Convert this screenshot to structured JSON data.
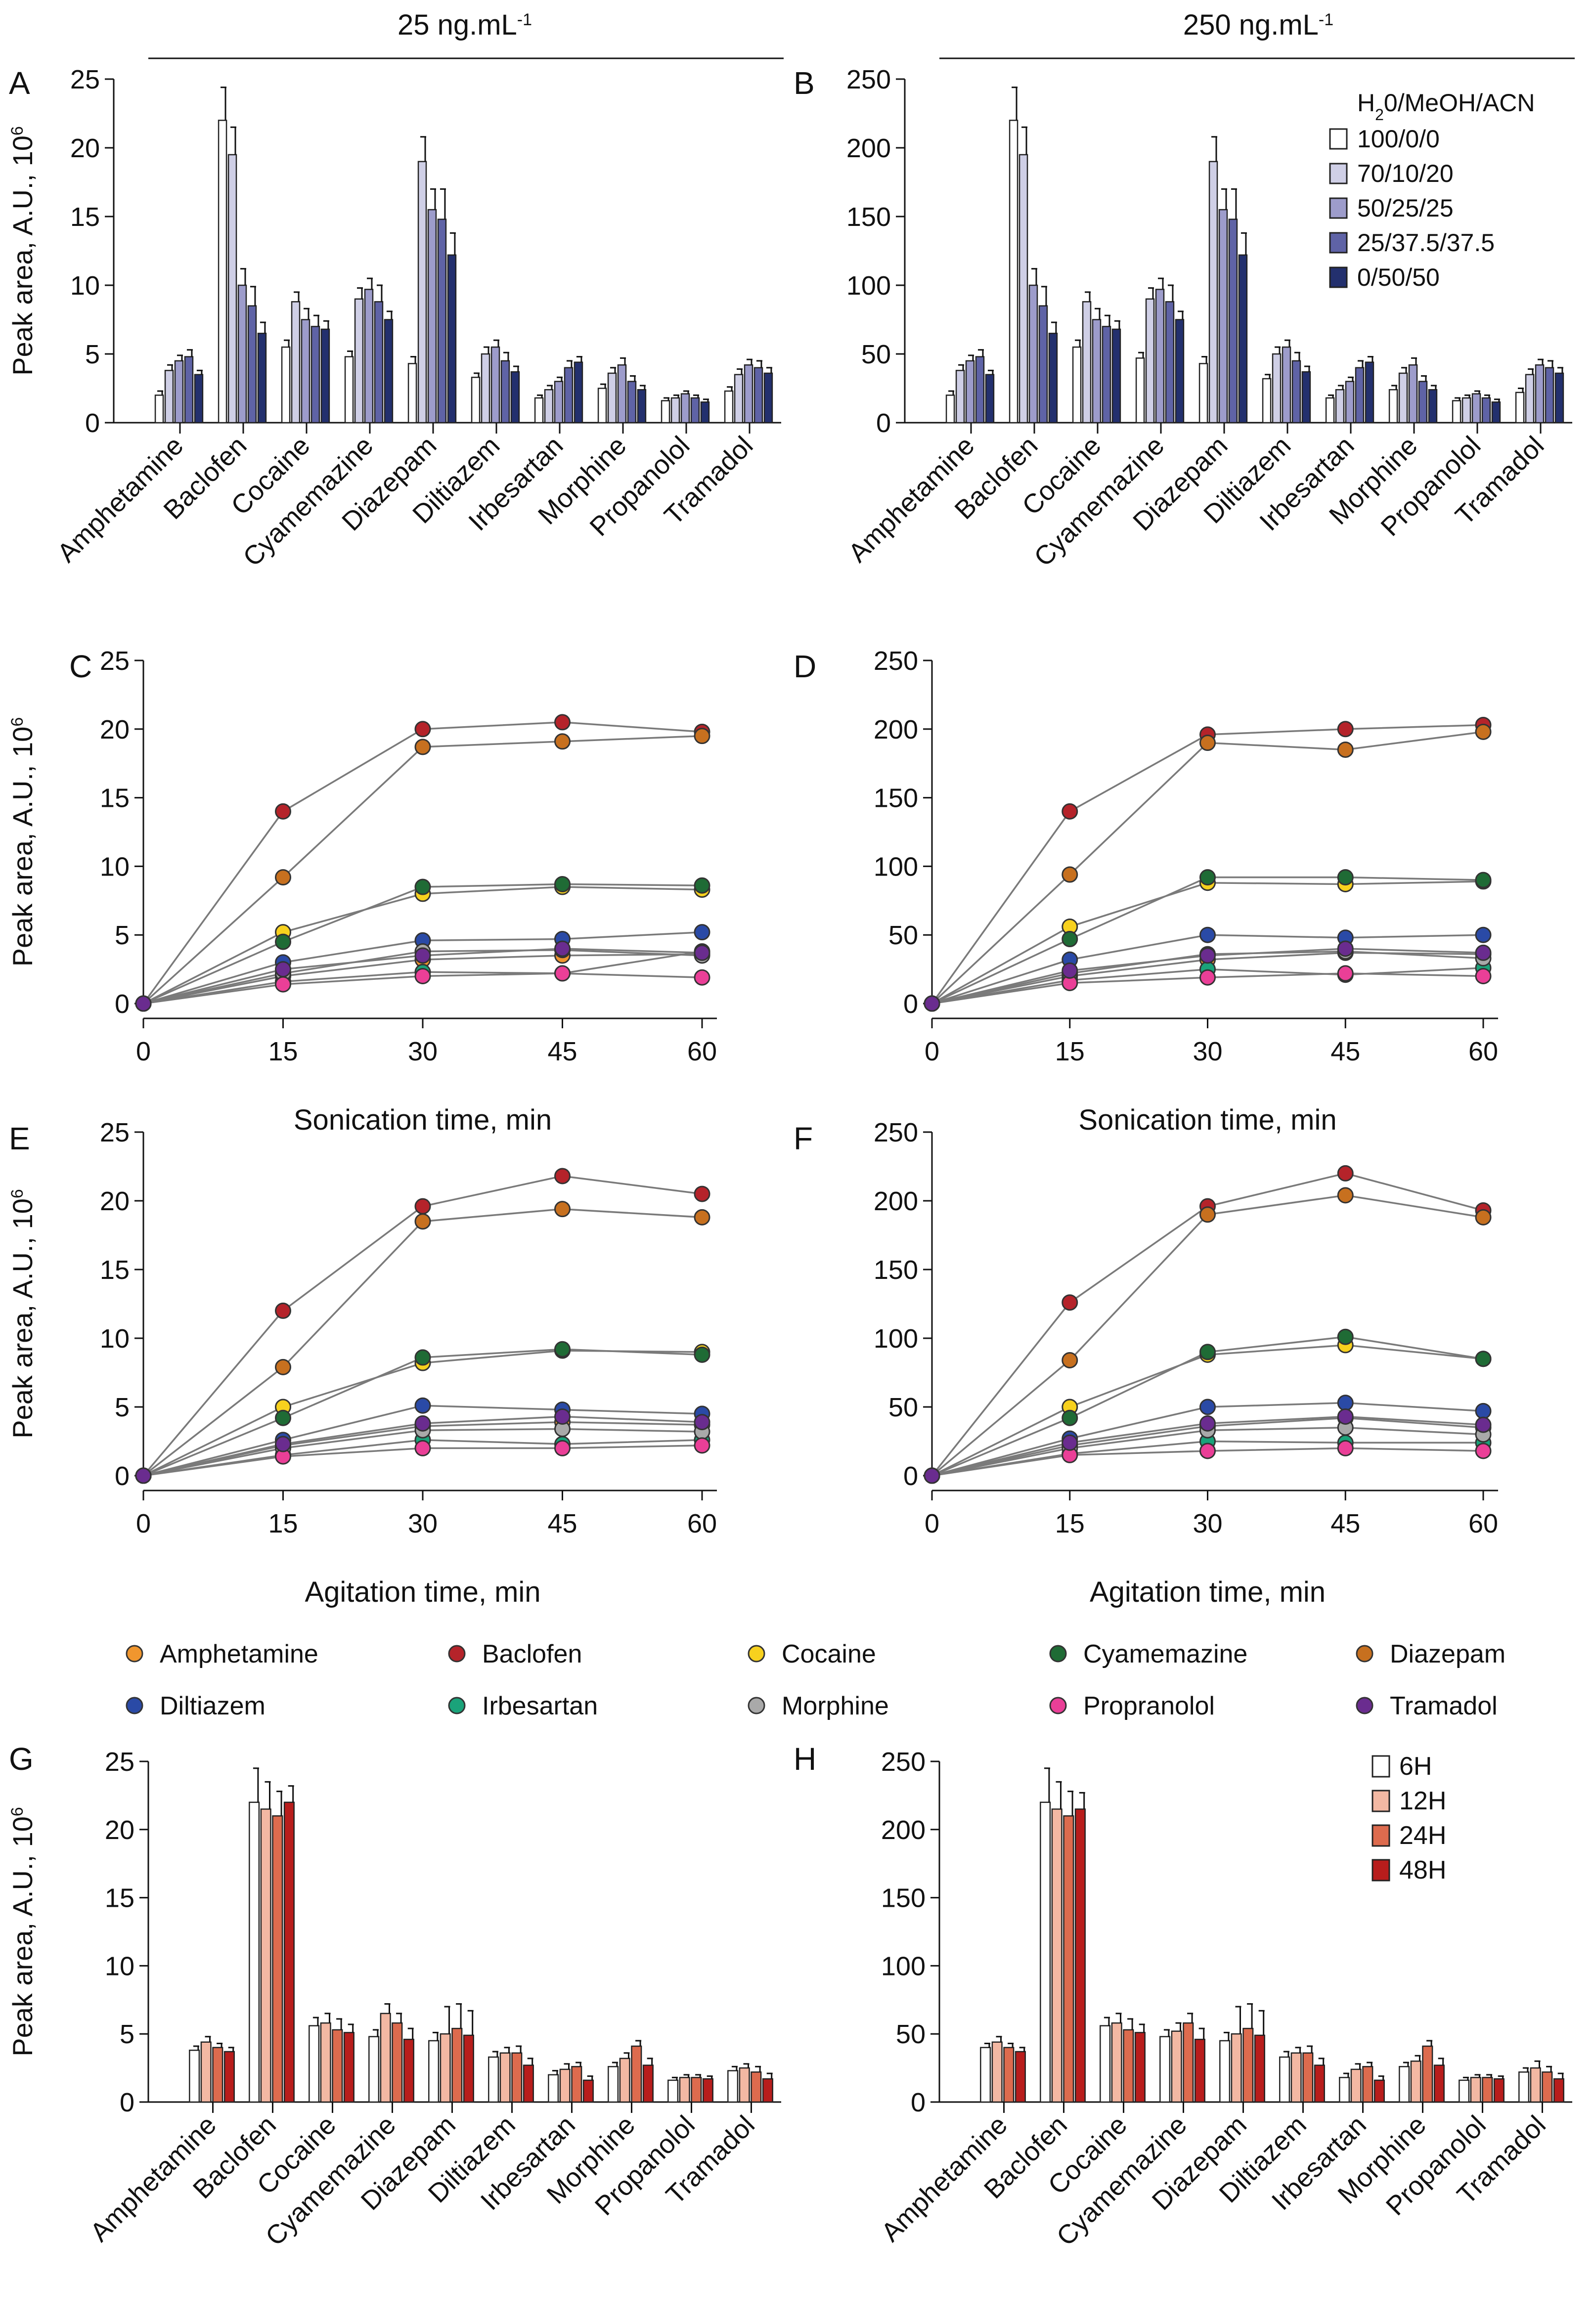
{
  "headers": {
    "left_main": "25 ng.mL",
    "left_sup": "-1",
    "right_main": "250 ng.mL",
    "right_sup": "-1"
  },
  "panel_letters": {
    "A": "A",
    "B": "B",
    "C": "C",
    "D": "D",
    "E": "E",
    "F": "F",
    "G": "G",
    "H": "H"
  },
  "y_axis": {
    "label_main": "Peak area, A.U., 10",
    "label_sup": "6"
  },
  "compounds_bar": [
    "Amphetamine",
    "Baclofen",
    "Cocaine",
    "Cyamemazine",
    "Diazepam",
    "Diltiazem",
    "Irbesartan",
    "Morphine",
    "Propanolol",
    "Tramadol"
  ],
  "compound_legend": [
    {
      "name": "Amphetamine",
      "color": "#f0962e"
    },
    {
      "name": "Baclofen",
      "color": "#b5232a"
    },
    {
      "name": "Cocaine",
      "color": "#f7d11e"
    },
    {
      "name": "Cyamemazine",
      "color": "#1f6b35"
    },
    {
      "name": "Diazepam",
      "color": "#c7701f"
    },
    {
      "name": "Diltiazem",
      "color": "#2a4aa6"
    },
    {
      "name": "Irbesartan",
      "color": "#1aa37a"
    },
    {
      "name": "Morphine",
      "color": "#a9a9a9"
    },
    {
      "name": "Propranolol",
      "color": "#ea3f97"
    },
    {
      "name": "Tramadol",
      "color": "#6a2c8f"
    }
  ],
  "legend_solvent": {
    "title_parts": [
      "H",
      "2",
      "0/MeOH/ACN"
    ],
    "labels": [
      "100/0/0",
      "70/10/20",
      "50/25/25",
      "25/37.5/37.5",
      "0/50/50"
    ],
    "colors": [
      "#ffffff",
      "#cfcfe6",
      "#9d9ccb",
      "#5f63a6",
      "#23306e"
    ]
  },
  "legend_time": {
    "labels": [
      "6H",
      "12H",
      "24H",
      "48H"
    ],
    "colors": [
      "#ffffff",
      "#f3b8a3",
      "#dd6b4e",
      "#b81d1c"
    ]
  },
  "chart_data": [
    {
      "panel": "A",
      "type": "bar",
      "title": "25 ng.mL-1",
      "ylabel": "Peak area, A.U., 10^6",
      "ylim": [
        0,
        25
      ],
      "yticks": [
        0,
        5,
        10,
        15,
        20,
        25
      ],
      "categories": [
        "Amphetamine",
        "Baclofen",
        "Cocaine",
        "Cyamemazine",
        "Diazepam",
        "Diltiazem",
        "Irbesartan",
        "Morphine",
        "Propanolol",
        "Tramadol"
      ],
      "series": [
        {
          "name": "100/0/0",
          "values": [
            2.0,
            22.0,
            5.5,
            4.8,
            4.3,
            3.3,
            1.8,
            2.5,
            1.6,
            2.3
          ],
          "errors": [
            0.3,
            2.4,
            0.5,
            0.4,
            0.5,
            0.3,
            0.2,
            0.3,
            0.2,
            0.3
          ]
        },
        {
          "name": "70/10/20",
          "values": [
            3.8,
            19.5,
            8.8,
            9.0,
            19.0,
            5.0,
            2.4,
            3.6,
            1.8,
            3.5
          ],
          "errors": [
            0.4,
            2.0,
            0.7,
            0.8,
            1.8,
            0.5,
            0.3,
            0.4,
            0.2,
            0.4
          ]
        },
        {
          "name": "50/25/25",
          "values": [
            4.5,
            10.0,
            7.5,
            9.7,
            15.5,
            5.5,
            3.0,
            4.2,
            2.1,
            4.2
          ],
          "errors": [
            0.4,
            1.2,
            0.8,
            0.8,
            1.5,
            0.5,
            0.3,
            0.5,
            0.2,
            0.4
          ]
        },
        {
          "name": "25/37.5/37.5",
          "values": [
            4.8,
            8.5,
            7.0,
            8.8,
            14.8,
            4.5,
            4.0,
            3.0,
            1.8,
            4.0
          ],
          "errors": [
            0.5,
            1.4,
            0.8,
            1.2,
            2.2,
            0.6,
            0.5,
            0.4,
            0.2,
            0.5
          ]
        },
        {
          "name": "0/50/50",
          "values": [
            3.5,
            6.5,
            6.8,
            7.5,
            12.2,
            3.7,
            4.4,
            2.4,
            1.5,
            3.6
          ],
          "errors": [
            0.3,
            0.8,
            0.6,
            0.6,
            1.6,
            0.4,
            0.4,
            0.3,
            0.2,
            0.4
          ]
        }
      ]
    },
    {
      "panel": "B",
      "type": "bar",
      "title": "250 ng.mL-1",
      "ylabel": "",
      "ylim": [
        0,
        250
      ],
      "yticks": [
        0,
        50,
        100,
        150,
        200,
        250
      ],
      "categories": [
        "Amphetamine",
        "Baclofen",
        "Cocaine",
        "Cyamemazine",
        "Diazepam",
        "Diltiazem",
        "Irbesartan",
        "Morphine",
        "Propanolol",
        "Tramadol"
      ],
      "series": [
        {
          "name": "100/0/0",
          "values": [
            20,
            220,
            55,
            47,
            43,
            32,
            18,
            24,
            16,
            22
          ],
          "errors": [
            3,
            24,
            5,
            4,
            5,
            3,
            2,
            3,
            2,
            3
          ]
        },
        {
          "name": "70/10/20",
          "values": [
            38,
            195,
            88,
            90,
            190,
            50,
            24,
            36,
            18,
            35
          ],
          "errors": [
            4,
            20,
            7,
            8,
            18,
            5,
            3,
            4,
            2,
            4
          ]
        },
        {
          "name": "50/25/25",
          "values": [
            45,
            100,
            75,
            97,
            155,
            55,
            30,
            42,
            21,
            42
          ],
          "errors": [
            4,
            12,
            8,
            8,
            15,
            5,
            3,
            5,
            2,
            4
          ]
        },
        {
          "name": "25/37.5/37.5",
          "values": [
            48,
            85,
            70,
            88,
            148,
            45,
            40,
            30,
            18,
            40
          ],
          "errors": [
            5,
            14,
            8,
            12,
            22,
            6,
            5,
            4,
            2,
            5
          ]
        },
        {
          "name": "0/50/50",
          "values": [
            35,
            65,
            68,
            75,
            122,
            37,
            44,
            24,
            15,
            36
          ],
          "errors": [
            3,
            8,
            6,
            6,
            16,
            4,
            4,
            3,
            2,
            4
          ]
        }
      ]
    },
    {
      "panel": "C",
      "type": "line",
      "xlabel": "Sonication time, min",
      "ylabel": "Peak area, A.U., 10^6",
      "ylim": [
        0,
        25
      ],
      "yticks": [
        0,
        5,
        10,
        15,
        20,
        25
      ],
      "x": [
        0,
        15,
        30,
        45,
        60
      ],
      "series": [
        {
          "name": "Amphetamine",
          "values": [
            0,
            2.0,
            3.2,
            3.5,
            3.6
          ]
        },
        {
          "name": "Baclofen",
          "values": [
            0,
            14.0,
            20.0,
            20.5,
            19.8
          ]
        },
        {
          "name": "Cocaine",
          "values": [
            0,
            5.2,
            8.0,
            8.5,
            8.3
          ]
        },
        {
          "name": "Cyamemazine",
          "values": [
            0,
            4.5,
            8.5,
            8.7,
            8.6
          ]
        },
        {
          "name": "Diazepam",
          "values": [
            0,
            9.2,
            18.7,
            19.1,
            19.5
          ]
        },
        {
          "name": "Diltiazem",
          "values": [
            0,
            3.0,
            4.6,
            4.7,
            5.2
          ]
        },
        {
          "name": "Irbesartan",
          "values": [
            0,
            1.6,
            2.3,
            2.2,
            3.8
          ]
        },
        {
          "name": "Morphine",
          "values": [
            0,
            2.2,
            3.8,
            3.9,
            3.5
          ]
        },
        {
          "name": "Propranolol",
          "values": [
            0,
            1.4,
            2.0,
            2.2,
            1.9
          ]
        },
        {
          "name": "Tramadol",
          "values": [
            0,
            2.5,
            3.5,
            4.0,
            3.7
          ]
        }
      ]
    },
    {
      "panel": "D",
      "type": "line",
      "xlabel": "Sonication time, min",
      "ylabel": "",
      "ylim": [
        0,
        250
      ],
      "yticks": [
        0,
        50,
        100,
        150,
        200,
        250
      ],
      "x": [
        0,
        15,
        30,
        45,
        60
      ],
      "series": [
        {
          "name": "Amphetamine",
          "values": [
            0,
            20,
            32,
            37,
            36
          ]
        },
        {
          "name": "Baclofen",
          "values": [
            0,
            140,
            196,
            200,
            203
          ]
        },
        {
          "name": "Cocaine",
          "values": [
            0,
            56,
            88,
            87,
            89
          ]
        },
        {
          "name": "Cyamemazine",
          "values": [
            0,
            47,
            92,
            92,
            90
          ]
        },
        {
          "name": "Diazepam",
          "values": [
            0,
            94,
            190,
            185,
            198
          ]
        },
        {
          "name": "Diltiazem",
          "values": [
            0,
            32,
            50,
            48,
            50
          ]
        },
        {
          "name": "Irbesartan",
          "values": [
            0,
            17,
            25,
            21,
            26
          ]
        },
        {
          "name": "Morphine",
          "values": [
            0,
            22,
            36,
            38,
            33
          ]
        },
        {
          "name": "Propranolol",
          "values": [
            0,
            15,
            19,
            22,
            20
          ]
        },
        {
          "name": "Tramadol",
          "values": [
            0,
            24,
            35,
            40,
            37
          ]
        }
      ]
    },
    {
      "panel": "E",
      "type": "line",
      "xlabel": "Agitation time, min",
      "ylabel": "Peak area, A.U., 10^6",
      "ylim": [
        0,
        25
      ],
      "yticks": [
        0,
        5,
        10,
        15,
        20,
        25
      ],
      "x": [
        0,
        15,
        30,
        45,
        60
      ],
      "series": [
        {
          "name": "Amphetamine",
          "values": [
            0,
            2.2,
            3.6,
            3.9,
            3.7
          ]
        },
        {
          "name": "Baclofen",
          "values": [
            0,
            12.0,
            19.6,
            21.8,
            20.5
          ]
        },
        {
          "name": "Cocaine",
          "values": [
            0,
            5.0,
            8.2,
            9.1,
            9.0
          ]
        },
        {
          "name": "Cyamemazine",
          "values": [
            0,
            4.2,
            8.6,
            9.2,
            8.8
          ]
        },
        {
          "name": "Diazepam",
          "values": [
            0,
            7.9,
            18.5,
            19.4,
            18.8
          ]
        },
        {
          "name": "Diltiazem",
          "values": [
            0,
            2.6,
            5.1,
            4.8,
            4.5
          ]
        },
        {
          "name": "Irbesartan",
          "values": [
            0,
            1.5,
            2.6,
            2.3,
            2.6
          ]
        },
        {
          "name": "Morphine",
          "values": [
            0,
            2.0,
            3.3,
            3.4,
            3.2
          ]
        },
        {
          "name": "Propranolol",
          "values": [
            0,
            1.4,
            2.0,
            2.0,
            2.2
          ]
        },
        {
          "name": "Tramadol",
          "values": [
            0,
            2.3,
            3.8,
            4.3,
            3.9
          ]
        }
      ]
    },
    {
      "panel": "F",
      "type": "line",
      "xlabel": "Agitation time, min",
      "ylabel": "",
      "ylim": [
        0,
        250
      ],
      "yticks": [
        0,
        50,
        100,
        150,
        200,
        250
      ],
      "x": [
        0,
        15,
        30,
        45,
        60
      ],
      "series": [
        {
          "name": "Amphetamine",
          "values": [
            0,
            22,
            36,
            42,
            35
          ]
        },
        {
          "name": "Baclofen",
          "values": [
            0,
            126,
            196,
            220,
            193
          ]
        },
        {
          "name": "Cocaine",
          "values": [
            0,
            50,
            88,
            95,
            85
          ]
        },
        {
          "name": "Cyamemazine",
          "values": [
            0,
            42,
            90,
            101,
            85
          ]
        },
        {
          "name": "Diazepam",
          "values": [
            0,
            84,
            190,
            204,
            188
          ]
        },
        {
          "name": "Diltiazem",
          "values": [
            0,
            27,
            50,
            53,
            47
          ]
        },
        {
          "name": "Irbesartan",
          "values": [
            0,
            16,
            25,
            24,
            24
          ]
        },
        {
          "name": "Morphine",
          "values": [
            0,
            20,
            33,
            35,
            30
          ]
        },
        {
          "name": "Propranolol",
          "values": [
            0,
            15,
            18,
            20,
            18
          ]
        },
        {
          "name": "Tramadol",
          "values": [
            0,
            24,
            38,
            43,
            37
          ]
        }
      ]
    },
    {
      "panel": "G",
      "type": "bar",
      "ylabel": "Peak area, A.U., 10^6",
      "ylim": [
        0,
        25
      ],
      "yticks": [
        0,
        5,
        10,
        15,
        20,
        25
      ],
      "categories": [
        "Amphetamine",
        "Baclofen",
        "Cocaine",
        "Cyamemazine",
        "Diazepam",
        "Diltiazem",
        "Irbesartan",
        "Morphine",
        "Propanolol",
        "Tramadol"
      ],
      "series": [
        {
          "name": "6H",
          "values": [
            3.8,
            22.0,
            5.6,
            4.8,
            4.5,
            3.3,
            2.0,
            2.6,
            1.6,
            2.3
          ],
          "errors": [
            0.3,
            2.5,
            0.6,
            0.5,
            0.6,
            0.4,
            0.3,
            0.3,
            0.2,
            0.3
          ]
        },
        {
          "name": "12H",
          "values": [
            4.4,
            21.5,
            5.8,
            6.5,
            5.0,
            3.6,
            2.4,
            3.2,
            1.8,
            2.5
          ],
          "errors": [
            0.4,
            2.0,
            0.7,
            0.7,
            2.0,
            0.4,
            0.4,
            0.4,
            0.2,
            0.3
          ]
        },
        {
          "name": "24H",
          "values": [
            4.0,
            21.0,
            5.3,
            5.8,
            5.4,
            3.6,
            2.6,
            4.1,
            1.8,
            2.2
          ],
          "errors": [
            0.3,
            1.8,
            0.8,
            0.7,
            1.8,
            0.5,
            0.3,
            0.4,
            0.2,
            0.4
          ]
        },
        {
          "name": "48H",
          "values": [
            3.7,
            22.0,
            5.1,
            4.6,
            4.9,
            2.7,
            1.6,
            2.7,
            1.7,
            1.7
          ],
          "errors": [
            0.3,
            1.2,
            0.6,
            0.8,
            1.8,
            0.5,
            0.3,
            0.5,
            0.2,
            0.4
          ]
        }
      ]
    },
    {
      "panel": "H",
      "type": "bar",
      "ylabel": "",
      "ylim": [
        0,
        250
      ],
      "yticks": [
        0,
        50,
        100,
        150,
        200,
        250
      ],
      "categories": [
        "Amphetamine",
        "Baclofen",
        "Cocaine",
        "Cyamemazine",
        "Diazepam",
        "Diltiazem",
        "Irbesartan",
        "Morphine",
        "Propanolol",
        "Tramadol"
      ],
      "series": [
        {
          "name": "6H",
          "values": [
            40,
            220,
            56,
            48,
            45,
            33,
            18,
            26,
            16,
            22
          ],
          "errors": [
            3,
            25,
            6,
            5,
            6,
            4,
            3,
            3,
            2,
            3
          ]
        },
        {
          "name": "12H",
          "values": [
            44,
            215,
            58,
            52,
            50,
            36,
            24,
            30,
            18,
            25
          ],
          "errors": [
            4,
            20,
            7,
            6,
            20,
            4,
            4,
            4,
            2,
            5
          ]
        },
        {
          "name": "24H",
          "values": [
            40,
            210,
            53,
            58,
            54,
            36,
            26,
            41,
            18,
            22
          ],
          "errors": [
            3,
            18,
            8,
            7,
            18,
            5,
            3,
            4,
            2,
            4
          ]
        },
        {
          "name": "48H",
          "values": [
            37,
            215,
            51,
            46,
            49,
            27,
            16,
            27,
            17,
            17
          ],
          "errors": [
            3,
            12,
            6,
            8,
            18,
            5,
            3,
            5,
            2,
            4
          ]
        }
      ]
    }
  ]
}
